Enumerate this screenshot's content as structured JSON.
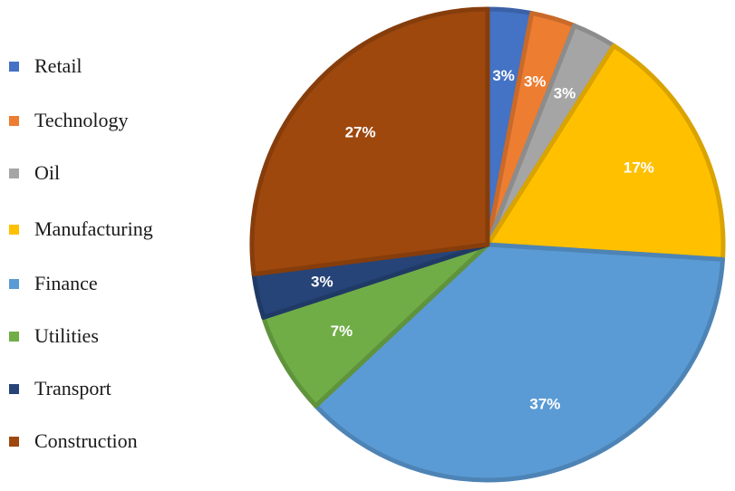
{
  "chart_data": {
    "type": "pie",
    "title": "",
    "legend_position": "left",
    "slices": [
      {
        "name": "Retail",
        "value": 3,
        "label": "3%",
        "color": "#4472C4"
      },
      {
        "name": "Technology",
        "value": 3,
        "label": "3%",
        "color": "#ED7D31"
      },
      {
        "name": "Oil",
        "value": 3,
        "label": "3%",
        "color": "#A5A5A5"
      },
      {
        "name": "Manufacturing",
        "value": 17,
        "label": "17%",
        "color": "#FFC000"
      },
      {
        "name": "Finance",
        "value": 37,
        "label": "37%",
        "color": "#5B9BD5"
      },
      {
        "name": "Utilities",
        "value": 7,
        "label": "7%",
        "color": "#70AD47"
      },
      {
        "name": "Transport",
        "value": 3,
        "label": "3%",
        "color": "#264478"
      },
      {
        "name": "Construction",
        "value": 27,
        "label": "27%",
        "color": "#9E480E"
      }
    ]
  }
}
